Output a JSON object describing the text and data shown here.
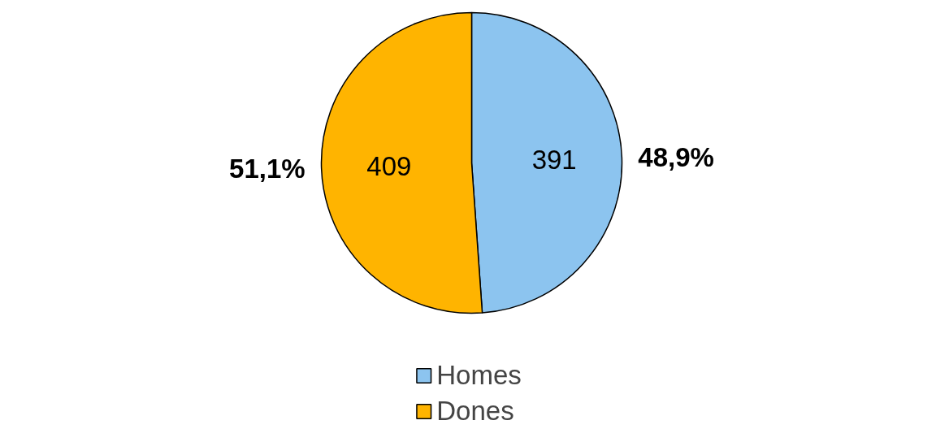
{
  "chart_data": {
    "type": "pie",
    "categories": [
      "Homes",
      "Dones"
    ],
    "values": [
      391,
      409
    ],
    "colors": [
      "#8cc4ef",
      "#ffb400"
    ],
    "data_labels": true,
    "annotations": [
      "48,9%",
      "51,1%"
    ],
    "legend": "bottom"
  }
}
